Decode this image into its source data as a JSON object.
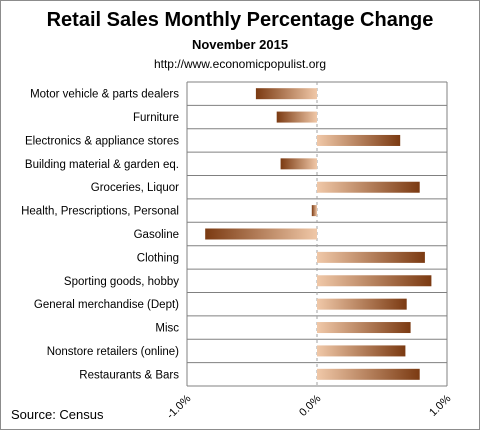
{
  "chart_data": {
    "type": "bar",
    "orientation": "horizontal",
    "title": "Retail Sales Monthly  Percentage Change",
    "subtitle": "November 2015",
    "url": "http://www.economicpopulist.org",
    "source": "Source:  Census",
    "categories": [
      "Motor vehicle & parts dealers",
      "Furniture",
      "Electronics & appliance stores",
      "Building material & garden eq.",
      "Groceries, Liquor",
      "Health, Prescriptions, Personal",
      "Gasoline",
      "Clothing",
      "Sporting goods, hobby",
      "General merchandise (Dept)",
      "Misc",
      "Nonstore retailers (online)",
      "Restaurants & Bars"
    ],
    "values": [
      -0.47,
      -0.31,
      0.64,
      -0.28,
      0.79,
      -0.04,
      -0.86,
      0.83,
      0.88,
      0.69,
      0.72,
      0.68,
      0.79
    ],
    "xlim": [
      -1.0,
      1.0
    ],
    "xticks": [
      -1.0,
      0.0,
      1.0
    ],
    "xtick_labels": [
      "-1.0%",
      "0.0%",
      "1.0%"
    ],
    "grid": true,
    "colors": {
      "bar_dark": "#7b3a12",
      "bar_light": "#f0c8a8",
      "grid": "#808080"
    }
  }
}
